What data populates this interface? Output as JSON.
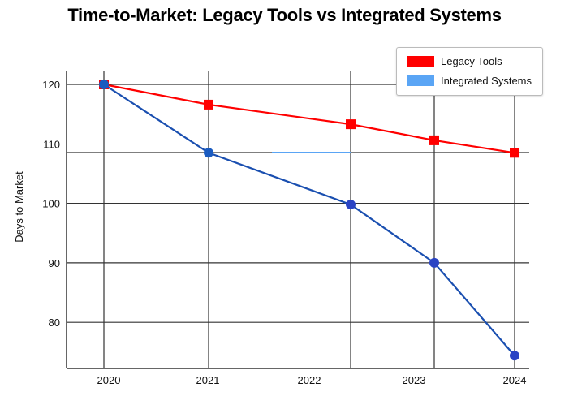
{
  "chart_data": {
    "type": "line",
    "title": "Time-to-Market: Legacy Tools vs Integrated Systems",
    "xlabel": "",
    "ylabel": "Days to Market",
    "categories": [
      "2020",
      "2021",
      "2022",
      "2023",
      "2024"
    ],
    "yticks": [
      80,
      90,
      100,
      110,
      120
    ],
    "ylim": [
      74,
      122
    ],
    "grid": true,
    "legend_position": "top-right",
    "series": [
      {
        "name": "Legacy Tools",
        "color": "#ff0000",
        "marker": "square",
        "values": [
          120,
          116.6,
          113.3,
          110.6,
          108.5
        ]
      },
      {
        "name": "Integrated Systems",
        "color": "#5aa5f5",
        "line_color": "#1a4fb0",
        "marker": "circle",
        "values": [
          120,
          108.5,
          99.8,
          90,
          74.4
        ]
      }
    ]
  }
}
